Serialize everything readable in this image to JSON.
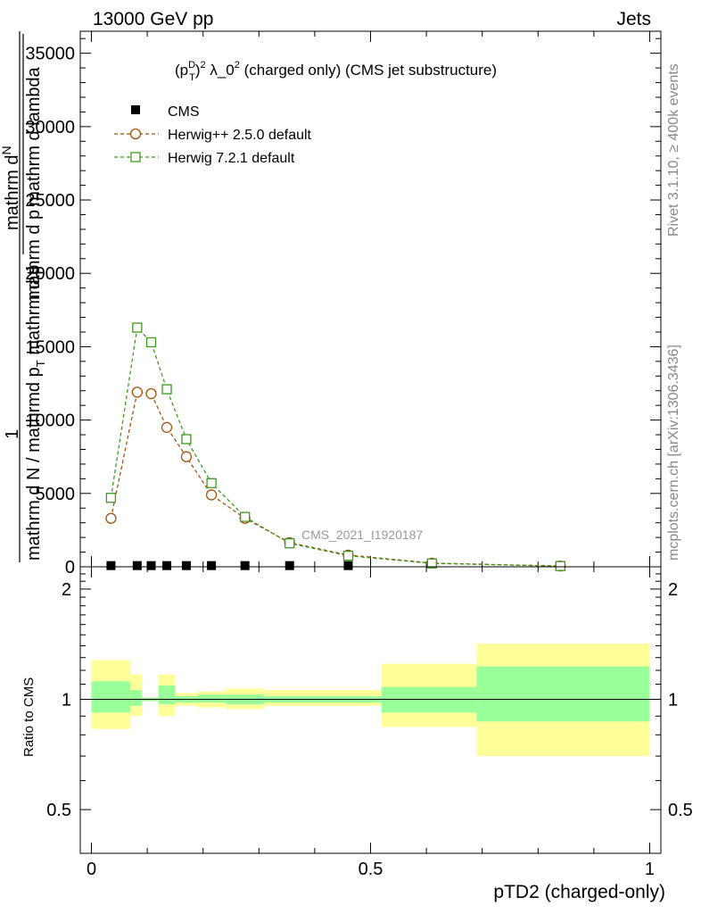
{
  "header": {
    "left": "13000 GeV pp",
    "right": "Jets"
  },
  "side_labels": {
    "rivet": "Rivet 3.1.10, ≥ 400k events",
    "mcplots": "mcplots.cern.ch [arXiv:1306.3436]"
  },
  "chart_data": [
    {
      "type": "line",
      "title_parts": {
        "p": "(p",
        "sup": "D",
        "sub": "T",
        "rest": ")",
        "sq": "2",
        "lam": " λ_0",
        "sq2": "2",
        "tail": " (charged only) (CMS jet substructure)"
      },
      "ylabel_parts": {
        "num_top": "1",
        "num_mid": "mathrm d N / mathrmd p",
        "num_sub": "T",
        "num_end": " mathrm d p",
        "inner_num": "mathrm d",
        "inner_n": "N",
        "inner_den": "mathrm d p",
        "inner_den2": "mathrm d lambda",
        "den": "mathrm d N / mathrmd p mathrm d lambda"
      },
      "ylim": [
        0,
        36500
      ],
      "yticks": [
        0,
        5000,
        10000,
        15000,
        20000,
        25000,
        30000,
        35000
      ],
      "ytick_labels": [
        "0",
        "5000",
        "10000",
        "15000",
        "20000",
        "25000",
        "30000",
        "35000"
      ],
      "xlim": [
        -0.02,
        1.02
      ],
      "analysis_label": "CMS_2021_I1920187",
      "legend": [
        {
          "name": "CMS",
          "marker": "filled-square",
          "color": "#000000"
        },
        {
          "name": "Herwig++ 2.5.0 default",
          "marker": "open-circle",
          "color": "#a0520c"
        },
        {
          "name": "Herwig 7.2.1 default",
          "marker": "open-square",
          "color": "#3c9a1e"
        }
      ],
      "series": [
        {
          "name": "CMS",
          "x": [
            0.035,
            0.082,
            0.107,
            0.135,
            0.17,
            0.215,
            0.275,
            0.355,
            0.46,
            0.84
          ],
          "y": [
            80,
            80,
            80,
            80,
            80,
            80,
            80,
            80,
            80,
            80
          ]
        },
        {
          "name": "Herwig++ 2.5.0 default",
          "x": [
            0.035,
            0.082,
            0.107,
            0.135,
            0.17,
            0.215,
            0.275,
            0.355,
            0.46,
            0.61,
            0.84
          ],
          "y": [
            3300,
            11900,
            11800,
            9500,
            7500,
            4900,
            3300,
            1650,
            800,
            250,
            50
          ]
        },
        {
          "name": "Herwig 7.2.1 default",
          "x": [
            0.035,
            0.082,
            0.107,
            0.135,
            0.17,
            0.215,
            0.275,
            0.355,
            0.46,
            0.61,
            0.84
          ],
          "y": [
            4700,
            16300,
            15300,
            12100,
            8700,
            5700,
            3400,
            1600,
            750,
            230,
            50
          ]
        }
      ]
    },
    {
      "type": "area",
      "ylabel": "Ratio to CMS",
      "ylim": [
        0.38,
        2.3
      ],
      "yticks": [
        0.5,
        1,
        2
      ],
      "ytick_labels": [
        "0.5",
        "1",
        "2"
      ],
      "xlim": [
        -0.02,
        1.02
      ],
      "xticks": [
        0,
        0.5,
        1
      ],
      "xtick_labels": [
        "0",
        "0.5",
        "1"
      ],
      "xlabel": "pTD2 (charged-only)",
      "bands": [
        {
          "x0": 0.0,
          "x1": 0.07,
          "inner": [
            0.92,
            1.12
          ],
          "outer": [
            0.83,
            1.28
          ]
        },
        {
          "x0": 0.07,
          "x1": 0.09,
          "inner": [
            0.96,
            1.06
          ],
          "outer": [
            0.9,
            1.17
          ]
        },
        {
          "x0": 0.09,
          "x1": 0.12,
          "inner": [
            0.99,
            1.01
          ],
          "outer": [
            0.99,
            1.01
          ]
        },
        {
          "x0": 0.12,
          "x1": 0.15,
          "inner": [
            0.97,
            1.09
          ],
          "outer": [
            0.9,
            1.17
          ]
        },
        {
          "x0": 0.15,
          "x1": 0.19,
          "inner": [
            0.98,
            1.02
          ],
          "outer": [
            0.96,
            1.04
          ]
        },
        {
          "x0": 0.19,
          "x1": 0.24,
          "inner": [
            0.98,
            1.03
          ],
          "outer": [
            0.95,
            1.05
          ]
        },
        {
          "x0": 0.24,
          "x1": 0.31,
          "inner": [
            0.97,
            1.03
          ],
          "outer": [
            0.94,
            1.07
          ]
        },
        {
          "x0": 0.31,
          "x1": 0.52,
          "inner": [
            0.98,
            1.02
          ],
          "outer": [
            0.96,
            1.06
          ]
        },
        {
          "x0": 0.52,
          "x1": 0.69,
          "inner": [
            0.92,
            1.08
          ],
          "outer": [
            0.84,
            1.25
          ]
        },
        {
          "x0": 0.69,
          "x1": 1.0,
          "inner": [
            0.87,
            1.23
          ],
          "outer": [
            0.7,
            1.42
          ]
        }
      ],
      "band_colors": {
        "inner": "#99ff99",
        "outer": "#ffff99"
      },
      "reference": 1
    }
  ]
}
